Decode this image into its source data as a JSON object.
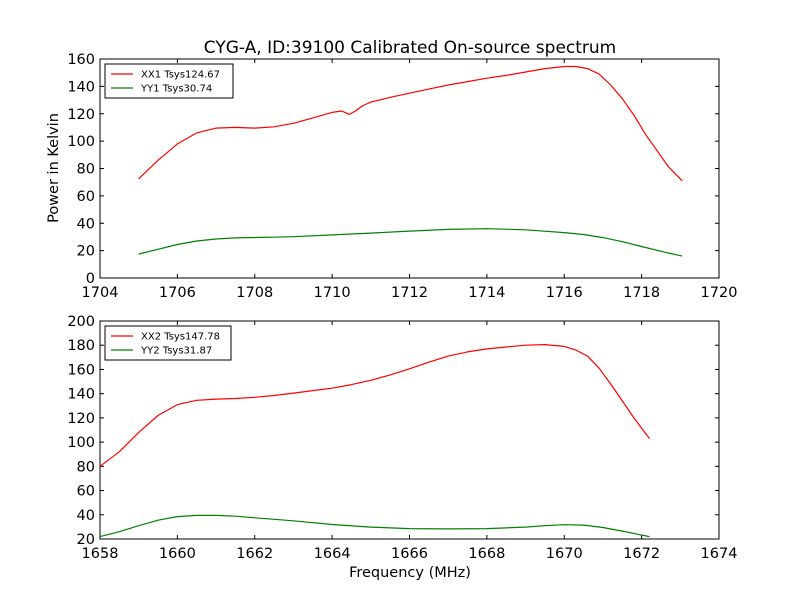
{
  "figure": {
    "title": "CYG-A, ID:39100 Calibrated On-source spectrum",
    "ylabel": "Power in Kelvin",
    "xlabel": "Frequency (MHz)"
  },
  "chart_data": [
    {
      "type": "line",
      "title": "CYG-A, ID:39100 Calibrated On-source spectrum",
      "xlabel": "",
      "ylabel": "Power in Kelvin",
      "xlim": [
        1704,
        1720
      ],
      "ylim": [
        0,
        160
      ],
      "xticks": [
        1704,
        1706,
        1708,
        1710,
        1712,
        1714,
        1716,
        1718,
        1720
      ],
      "yticks": [
        0,
        20,
        40,
        60,
        80,
        100,
        120,
        140,
        160
      ],
      "grid": false,
      "legend": "top-left",
      "series": [
        {
          "name": "XX1 Tsys124.67",
          "color": "#ff0000",
          "x": [
            1705.0,
            1705.5,
            1706.0,
            1706.5,
            1707.0,
            1707.5,
            1708.0,
            1708.5,
            1709.0,
            1709.5,
            1710.0,
            1710.25,
            1710.45,
            1710.6,
            1710.8,
            1711.0,
            1711.5,
            1712.0,
            1712.5,
            1713.0,
            1713.5,
            1714.0,
            1714.5,
            1715.0,
            1715.5,
            1716.0,
            1716.3,
            1716.6,
            1716.9,
            1717.2,
            1717.5,
            1717.8,
            1718.1,
            1718.4,
            1718.7,
            1719.05
          ],
          "y": [
            72.5,
            86,
            98,
            106,
            109.5,
            110,
            109.5,
            110.5,
            113,
            117,
            121,
            122,
            119.5,
            122,
            126,
            128.5,
            132,
            135,
            138,
            141,
            143.5,
            146,
            148,
            150.5,
            153,
            154.5,
            154.5,
            153,
            149,
            141,
            131,
            119,
            105,
            93,
            81,
            71
          ]
        },
        {
          "name": "YY1 Tsys30.74",
          "color": "#008000",
          "x": [
            1705.0,
            1705.5,
            1706.0,
            1706.5,
            1707.0,
            1707.5,
            1708.0,
            1708.5,
            1709.0,
            1710.0,
            1711.0,
            1712.0,
            1713.0,
            1714.0,
            1715.0,
            1716.0,
            1716.5,
            1717.0,
            1717.5,
            1718.0,
            1718.5,
            1719.05
          ],
          "y": [
            17.5,
            21,
            24.5,
            27,
            28.5,
            29.3,
            29.6,
            29.8,
            30.2,
            31.5,
            32.8,
            34.3,
            35.5,
            36,
            35.2,
            33.2,
            31.8,
            29.5,
            26.5,
            23,
            19.5,
            16
          ]
        }
      ]
    },
    {
      "type": "line",
      "title": "",
      "xlabel": "Frequency (MHz)",
      "ylabel": "",
      "xlim": [
        1658,
        1674
      ],
      "ylim": [
        20,
        200
      ],
      "xticks": [
        1658,
        1660,
        1662,
        1664,
        1666,
        1668,
        1670,
        1672,
        1674
      ],
      "yticks": [
        20,
        40,
        60,
        80,
        100,
        120,
        140,
        160,
        180,
        200
      ],
      "grid": false,
      "legend": "top-left",
      "series": [
        {
          "name": "XX2 Tsys147.78",
          "color": "#ff0000",
          "x": [
            1658.0,
            1658.5,
            1659.0,
            1659.5,
            1660.0,
            1660.5,
            1661.0,
            1661.5,
            1662.0,
            1662.5,
            1663.0,
            1663.5,
            1664.0,
            1664.5,
            1665.0,
            1665.5,
            1666.0,
            1666.5,
            1667.0,
            1667.5,
            1668.0,
            1668.5,
            1669.0,
            1669.5,
            1670.0,
            1670.3,
            1670.6,
            1670.9,
            1671.2,
            1671.5,
            1671.8,
            1672.2
          ],
          "y": [
            80,
            92,
            108,
            122,
            131,
            134.5,
            135.5,
            136,
            137,
            138.5,
            140.5,
            142.5,
            144.5,
            147.5,
            151,
            155.5,
            160.5,
            166,
            171,
            174.5,
            177,
            178.5,
            180,
            180.5,
            179,
            176,
            171,
            161,
            148,
            134,
            120,
            103
          ]
        },
        {
          "name": "YY2 Tsys31.87",
          "color": "#008000",
          "x": [
            1658.0,
            1658.5,
            1659.0,
            1659.5,
            1660.0,
            1660.5,
            1661.0,
            1661.5,
            1662.0,
            1663.0,
            1664.0,
            1665.0,
            1666.0,
            1667.0,
            1668.0,
            1669.0,
            1669.5,
            1670.0,
            1670.5,
            1671.0,
            1671.5,
            1672.2
          ],
          "y": [
            22,
            26,
            31,
            35.5,
            38.5,
            39.5,
            39.5,
            38.8,
            37.5,
            35,
            32,
            29.8,
            28.6,
            28.3,
            28.6,
            29.8,
            31,
            31.8,
            31.5,
            29.5,
            26.5,
            22
          ]
        }
      ]
    }
  ]
}
